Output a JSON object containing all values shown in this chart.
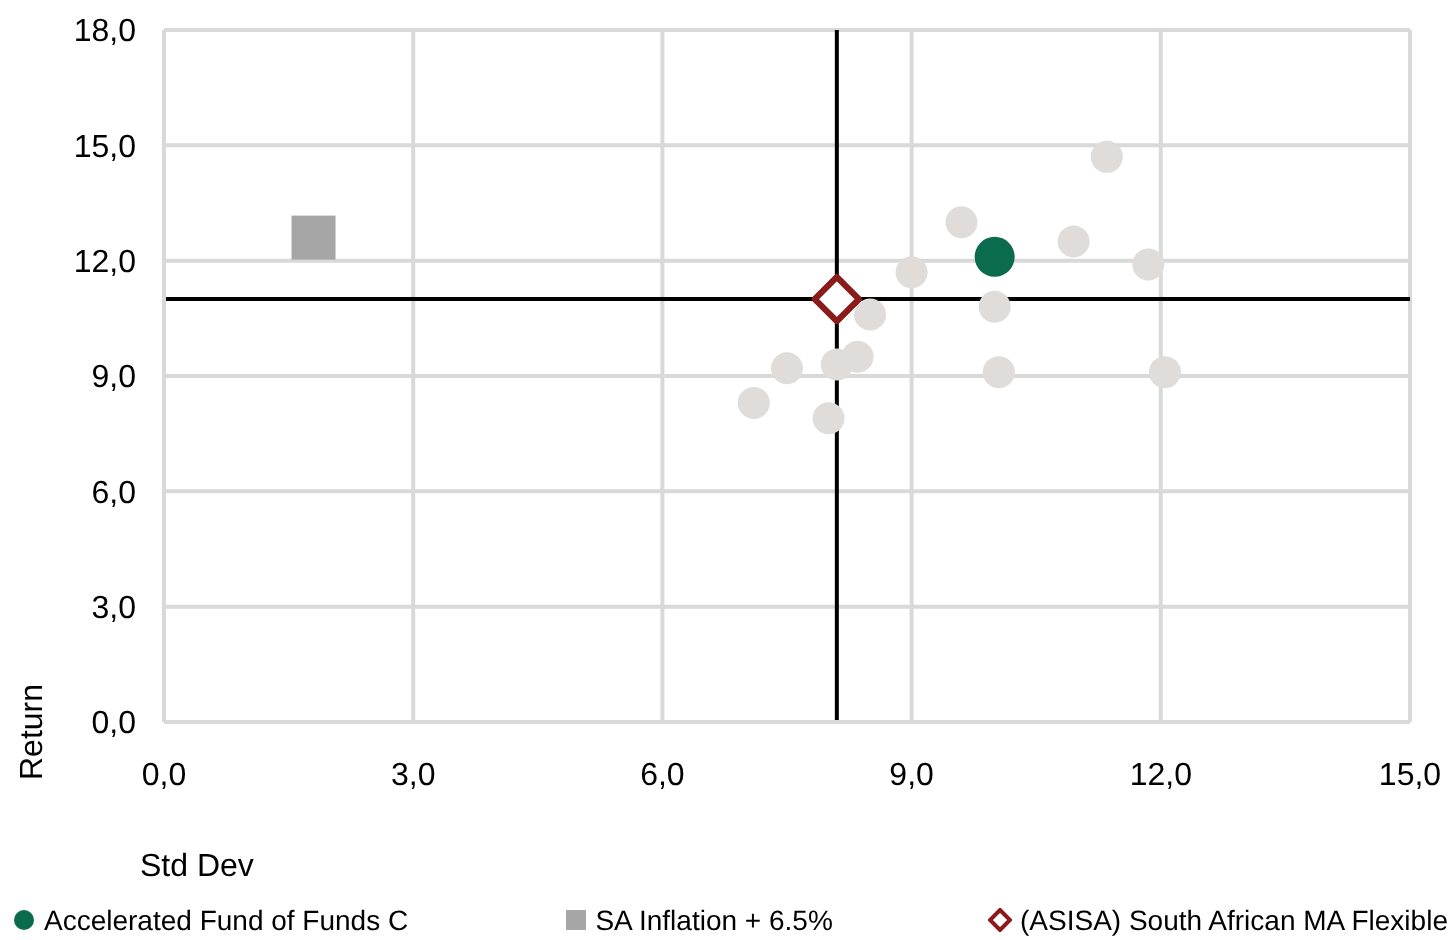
{
  "chart_data": {
    "type": "scatter",
    "xlabel": "Std Dev",
    "ylabel": "Return",
    "xlim": [
      0,
      15
    ],
    "ylim": [
      0,
      18
    ],
    "xticks": [
      {
        "value": 0,
        "label": "0,0"
      },
      {
        "value": 3,
        "label": "3,0"
      },
      {
        "value": 6,
        "label": "6,0"
      },
      {
        "value": 9,
        "label": "9,0"
      },
      {
        "value": 12,
        "label": "12,0"
      },
      {
        "value": 15,
        "label": "15,0"
      }
    ],
    "yticks": [
      {
        "value": 0,
        "label": "0,0"
      },
      {
        "value": 3,
        "label": "3,0"
      },
      {
        "value": 6,
        "label": "6,0"
      },
      {
        "value": 9,
        "label": "9,0"
      },
      {
        "value": 12,
        "label": "12,0"
      },
      {
        "value": 15,
        "label": "15,0"
      },
      {
        "value": 18,
        "label": "18,0"
      }
    ],
    "grid": true,
    "legend": "bottom",
    "ref_lines": [
      {
        "axis": "x",
        "value": 8.1,
        "color": "#000000"
      },
      {
        "axis": "y",
        "value": 11.0,
        "color": "#000000"
      }
    ],
    "series": [
      {
        "color": "#e0dcda",
        "marker": "circle",
        "x": [
          7.1,
          7.5,
          8.0,
          8.1,
          8.35,
          8.5,
          9.0,
          9.6,
          10.0,
          10.05,
          10.95,
          11.35,
          11.85,
          12.05
        ],
        "values": [
          8.3,
          9.2,
          7.9,
          9.3,
          9.5,
          10.6,
          11.7,
          13.0,
          10.8,
          9.1,
          12.5,
          14.7,
          11.9,
          9.1
        ]
      },
      {
        "name": "Accelerated Fund of Funds C",
        "color": "#0b6b4f",
        "marker": "circle",
        "x": [
          10.0
        ],
        "values": [
          12.1
        ]
      },
      {
        "name": "SA Inflation + 6.5%",
        "color": "#a6a6a6",
        "marker": "square",
        "x": [
          1.8
        ],
        "values": [
          12.6
        ]
      },
      {
        "name": "(ASISA) South African MA Flexible",
        "color": "#8b1a1a",
        "marker": "diamond",
        "x": [
          8.1
        ],
        "values": [
          11.0
        ]
      }
    ]
  }
}
